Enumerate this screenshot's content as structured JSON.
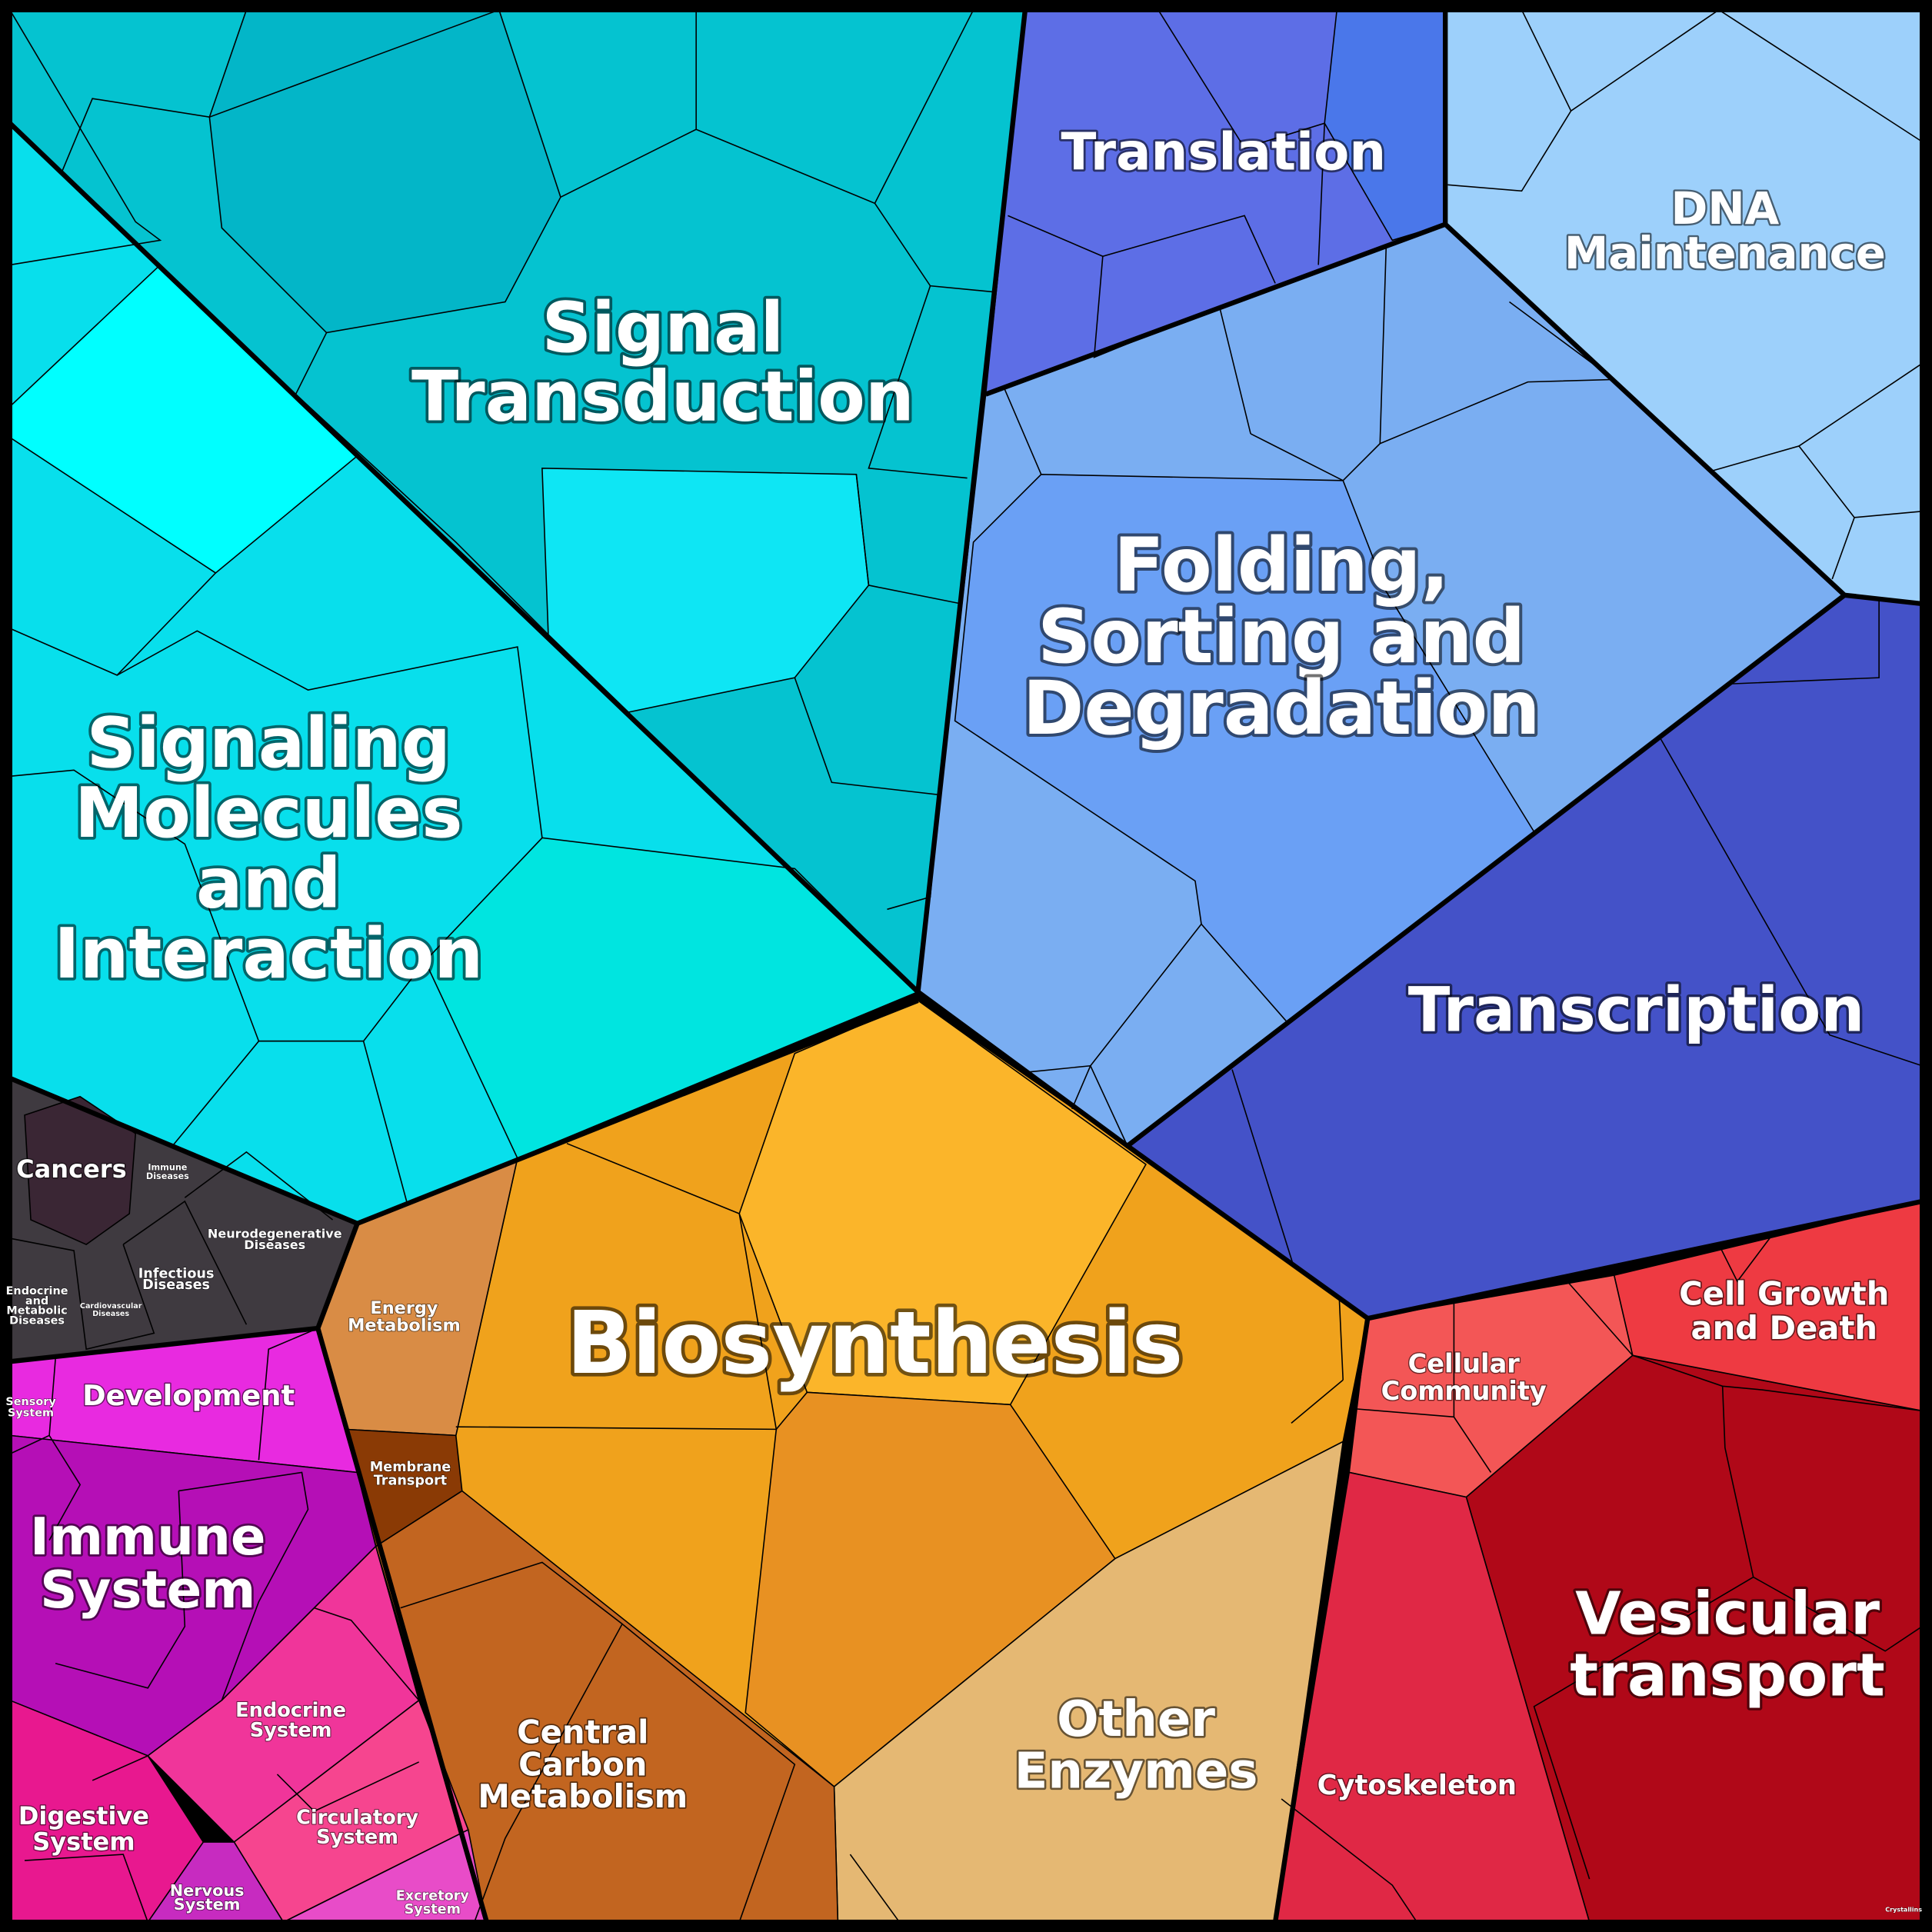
{
  "regions": [
    {
      "label": [
        "Signal",
        "Transduction"
      ]
    },
    {
      "label": [
        "Signaling",
        "Molecules",
        "and",
        "Interaction"
      ]
    },
    {
      "label": [
        "Translation"
      ]
    },
    {
      "label": [
        "DNA",
        "Maintenance"
      ]
    },
    {
      "label": [
        "Folding,",
        "Sorting and",
        "Degradation"
      ]
    },
    {
      "label": [
        "Transcription"
      ]
    },
    {
      "label": [
        "Biosynthesis"
      ]
    },
    {
      "label": [
        "Other",
        "Enzymes"
      ]
    },
    {
      "label": [
        "Vesicular",
        "transport"
      ]
    },
    {
      "label": [
        "Cell Growth",
        "and Death"
      ]
    },
    {
      "label": [
        "Cellular",
        "Community"
      ]
    },
    {
      "label": [
        "Cytoskeleton"
      ]
    },
    {
      "label": [
        "Central",
        "Carbon",
        "Metabolism"
      ]
    },
    {
      "label": [
        "Energy",
        "Metabolism"
      ]
    },
    {
      "label": [
        "Membrane",
        "Transport"
      ]
    },
    {
      "label": [
        "Cancers"
      ]
    },
    {
      "label": [
        "Immune",
        "Diseases"
      ]
    },
    {
      "label": [
        "Neurodegenerative",
        "Diseases"
      ]
    },
    {
      "label": [
        "Infectious",
        "Diseases"
      ]
    },
    {
      "label": [
        "Endocrine",
        "and",
        "Metabolic",
        "Diseases"
      ]
    },
    {
      "label": [
        "Cardiovascular",
        "Diseases"
      ]
    },
    {
      "label": [
        "Development"
      ]
    },
    {
      "label": [
        "Sensory",
        "System"
      ]
    },
    {
      "label": [
        "Immune",
        "System"
      ]
    },
    {
      "label": [
        "Endocrine",
        "System"
      ]
    },
    {
      "label": [
        "Circulatory",
        "System"
      ]
    },
    {
      "label": [
        "Digestive",
        "System"
      ]
    },
    {
      "label": [
        "Nervous",
        "System"
      ]
    },
    {
      "label": [
        "Excretory",
        "System"
      ]
    },
    {
      "label": [
        "Crystallins"
      ]
    }
  ]
}
